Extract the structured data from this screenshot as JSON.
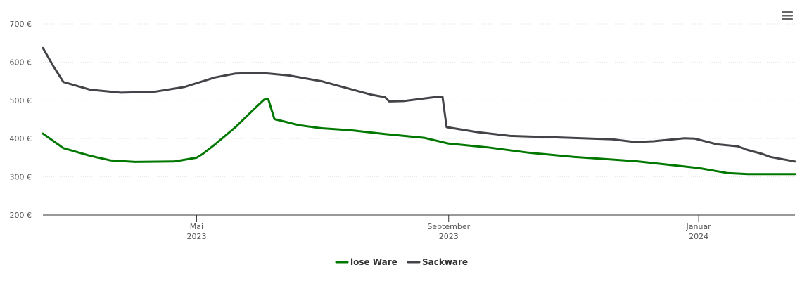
{
  "chart_data": {
    "type": "line",
    "title": "",
    "xlabel": "",
    "ylabel": "",
    "ylim": [
      200,
      700
    ],
    "yticks": [
      {
        "value": 200,
        "label": "200 €"
      },
      {
        "value": 300,
        "label": "300 €"
      },
      {
        "value": 400,
        "label": "400 €"
      },
      {
        "value": 500,
        "label": "500 €"
      },
      {
        "value": 600,
        "label": "600 €"
      },
      {
        "value": 700,
        "label": "700 €"
      }
    ],
    "xlim": [
      "2023-02-15",
      "2024-02-17"
    ],
    "xticks": [
      {
        "date": "2023-05-01",
        "label": "Mai",
        "sublabel": "2023"
      },
      {
        "date": "2023-09-01",
        "label": "September",
        "sublabel": "2023"
      },
      {
        "date": "2024-01-01",
        "label": "Januar",
        "sublabel": "2024"
      }
    ],
    "grid": true,
    "legend_position": "bottom-center",
    "series": [
      {
        "name": "lose Ware",
        "color": "#007800",
        "points": [
          [
            "2023-02-15",
            413
          ],
          [
            "2023-02-25",
            375
          ],
          [
            "2023-03-10",
            355
          ],
          [
            "2023-03-20",
            343
          ],
          [
            "2023-04-01",
            339
          ],
          [
            "2023-04-20",
            340
          ],
          [
            "2023-05-01",
            350
          ],
          [
            "2023-05-04",
            360
          ],
          [
            "2023-05-10",
            385
          ],
          [
            "2023-05-20",
            430
          ],
          [
            "2023-05-30",
            482
          ],
          [
            "2023-06-03",
            502
          ],
          [
            "2023-06-05",
            503
          ],
          [
            "2023-06-08",
            451
          ],
          [
            "2023-06-20",
            435
          ],
          [
            "2023-07-01",
            427
          ],
          [
            "2023-07-15",
            422
          ],
          [
            "2023-08-01",
            412
          ],
          [
            "2023-08-20",
            402
          ],
          [
            "2023-09-01",
            387
          ],
          [
            "2023-09-20",
            377
          ],
          [
            "2023-10-10",
            363
          ],
          [
            "2023-11-01",
            352
          ],
          [
            "2023-12-01",
            341
          ],
          [
            "2023-12-20",
            330
          ],
          [
            "2024-01-01",
            323
          ],
          [
            "2024-01-15",
            310
          ],
          [
            "2024-01-25",
            307
          ],
          [
            "2024-02-17",
            307
          ]
        ]
      },
      {
        "name": "Sackware",
        "color": "#434348",
        "points": [
          [
            "2023-02-15",
            637
          ],
          [
            "2023-02-20",
            590
          ],
          [
            "2023-02-25",
            548
          ],
          [
            "2023-03-10",
            528
          ],
          [
            "2023-03-25",
            520
          ],
          [
            "2023-04-10",
            522
          ],
          [
            "2023-04-25",
            535
          ],
          [
            "2023-05-10",
            560
          ],
          [
            "2023-05-20",
            570
          ],
          [
            "2023-06-01",
            572
          ],
          [
            "2023-06-15",
            565
          ],
          [
            "2023-07-01",
            550
          ],
          [
            "2023-07-25",
            515
          ],
          [
            "2023-08-01",
            508
          ],
          [
            "2023-08-03",
            497
          ],
          [
            "2023-08-10",
            498
          ],
          [
            "2023-08-25",
            508
          ],
          [
            "2023-08-29",
            509
          ],
          [
            "2023-08-31",
            430
          ],
          [
            "2023-09-15",
            417
          ],
          [
            "2023-10-01",
            407
          ],
          [
            "2023-10-25",
            403
          ],
          [
            "2023-11-20",
            398
          ],
          [
            "2023-12-01",
            391
          ],
          [
            "2023-12-10",
            393
          ],
          [
            "2023-12-25",
            401
          ],
          [
            "2023-12-30",
            400
          ],
          [
            "2024-01-10",
            385
          ],
          [
            "2024-01-20",
            380
          ],
          [
            "2024-01-25",
            370
          ],
          [
            "2024-02-01",
            360
          ],
          [
            "2024-02-05",
            352
          ],
          [
            "2024-02-17",
            340
          ]
        ]
      }
    ]
  },
  "menu": {
    "icon": "hamburger-menu-icon"
  }
}
